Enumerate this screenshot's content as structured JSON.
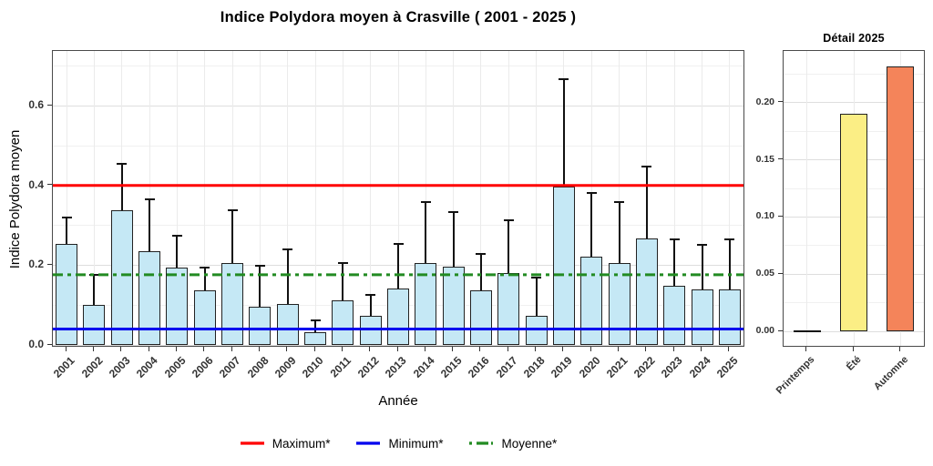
{
  "chart_data": [
    {
      "id": "main",
      "type": "bar",
      "title": "Indice Polydora moyen à Crasville ( 2001 - 2025 )",
      "xlabel": "Année",
      "ylabel": "Indice Polydora moyen",
      "categories": [
        "2001",
        "2002",
        "2003",
        "2004",
        "2005",
        "2006",
        "2007",
        "2008",
        "2009",
        "2010",
        "2011",
        "2012",
        "2013",
        "2014",
        "2015",
        "2016",
        "2017",
        "2018",
        "2019",
        "2020",
        "2021",
        "2022",
        "2023",
        "2024",
        "2025"
      ],
      "values": [
        0.254,
        0.1,
        0.338,
        0.235,
        0.195,
        0.138,
        0.205,
        0.096,
        0.103,
        0.031,
        0.111,
        0.072,
        0.142,
        0.206,
        0.197,
        0.136,
        0.18,
        0.072,
        0.397,
        0.222,
        0.206,
        0.266,
        0.148,
        0.139,
        0.14
      ],
      "error_top": [
        0.323,
        0.178,
        0.456,
        0.368,
        0.277,
        0.197,
        0.34,
        0.201,
        0.241,
        0.065,
        0.208,
        0.127,
        0.256,
        0.361,
        0.336,
        0.231,
        0.314,
        0.171,
        0.669,
        0.384,
        0.361,
        0.45,
        0.266,
        0.254,
        0.267
      ],
      "bar_fill": "#C5E8F5",
      "bar_stroke": "#222222",
      "ylim": [
        0,
        0.737
      ],
      "yticks": [
        0,
        0.2,
        0.4,
        0.6
      ],
      "ytick_labels": [
        "0.0",
        "0.2",
        "0.4",
        "0.6"
      ],
      "yticks_minor": [
        0.1,
        0.3,
        0.5,
        0.7
      ],
      "grid": true,
      "legend_position": "bottom",
      "ref_lines": [
        {
          "label": "Maximum*",
          "value": 0.4,
          "color": "#FF0000",
          "style": "solid"
        },
        {
          "label": "Minimum*",
          "value": 0.04,
          "color": "#0000EE",
          "style": "solid"
        },
        {
          "label": "Moyenne*",
          "value": 0.176,
          "color": "#228B22",
          "style": "dashdot"
        }
      ]
    },
    {
      "id": "detail",
      "type": "bar",
      "title": "Détail 2025",
      "xlabel": "",
      "ylabel": "",
      "categories": [
        "Printemps",
        "Été",
        "Automne"
      ],
      "values": [
        0,
        0.19,
        0.232
      ],
      "bar_fills": [
        null,
        "#FBEE85",
        "#F4845A"
      ],
      "bar_stroke": "#222222",
      "ylim": [
        0,
        0.245
      ],
      "yticks": [
        0,
        0.05,
        0.1,
        0.15,
        0.2
      ],
      "ytick_labels": [
        "0.00",
        "0.05",
        "0.10",
        "0.15",
        "0.20"
      ],
      "yticks_minor": [
        0.025,
        0.075,
        0.125,
        0.175,
        0.225
      ],
      "grid": true
    }
  ]
}
